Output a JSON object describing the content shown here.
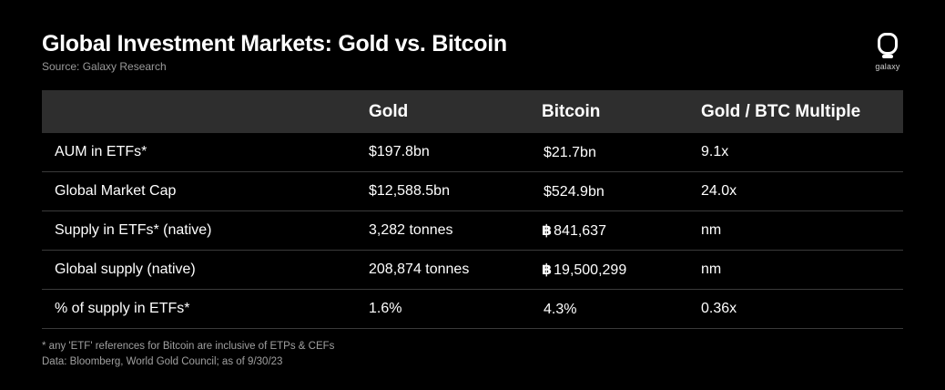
{
  "header": {
    "title": "Global Investment Markets: Gold vs. Bitcoin",
    "source": "Source: Galaxy Research",
    "logo_text": "galaxy"
  },
  "table": {
    "columns": [
      "",
      "Gold",
      "Bitcoin",
      "Gold / BTC Multiple"
    ],
    "rows": [
      {
        "label": "AUM in ETFs*",
        "gold": "$197.8bn",
        "btc_symbol": "",
        "bitcoin": "$21.7bn",
        "multiple": "9.1x"
      },
      {
        "label": "Global Market Cap",
        "gold": "$12,588.5bn",
        "btc_symbol": "",
        "bitcoin": "$524.9bn",
        "multiple": "24.0x"
      },
      {
        "label": "Supply in ETFs* (native)",
        "gold": "3,282 tonnes",
        "btc_symbol": "฿",
        "bitcoin": "841,637",
        "multiple": "nm"
      },
      {
        "label": "Global supply (native)",
        "gold": "208,874 tonnes",
        "btc_symbol": "฿",
        "bitcoin": "19,500,299",
        "multiple": "nm"
      },
      {
        "label": "% of supply in ETFs*",
        "gold": "1.6%",
        "btc_symbol": "",
        "bitcoin": "4.3%",
        "multiple": "0.36x"
      }
    ]
  },
  "footnotes": {
    "note": "* any 'ETF' references for Bitcoin are inclusive of ETPs & CEFs",
    "data": "Data: Bloomberg, World Gold Council; as of 9/30/23"
  },
  "colors": {
    "background": "#000000",
    "header_row": "#2e2e2e",
    "row_divider": "#3a3a3a",
    "muted_text": "#9a9a9a"
  }
}
